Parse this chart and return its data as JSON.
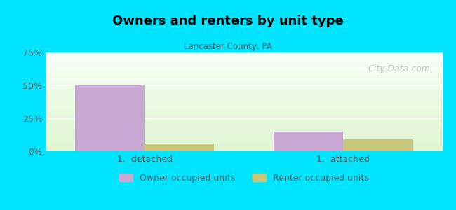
{
  "title": "Owners and renters by unit type",
  "subtitle": "Lancaster County, PA",
  "categories": [
    "1,  detached",
    "1,  attached"
  ],
  "owner_values": [
    50,
    15
  ],
  "renter_values": [
    6,
    9
  ],
  "owner_color": "#c9a8d4",
  "renter_color": "#c8c87a",
  "ylim": [
    0,
    75
  ],
  "yticks": [
    0,
    25,
    50,
    75
  ],
  "ytick_labels": [
    "0%",
    "25%",
    "50%",
    "75%"
  ],
  "bar_width": 0.35,
  "background_outer": "#00e5ff",
  "watermark": "City-Data.com",
  "legend_owner": "Owner occupied units",
  "legend_renter": "Renter occupied units",
  "xlim": [
    -0.5,
    1.5
  ]
}
